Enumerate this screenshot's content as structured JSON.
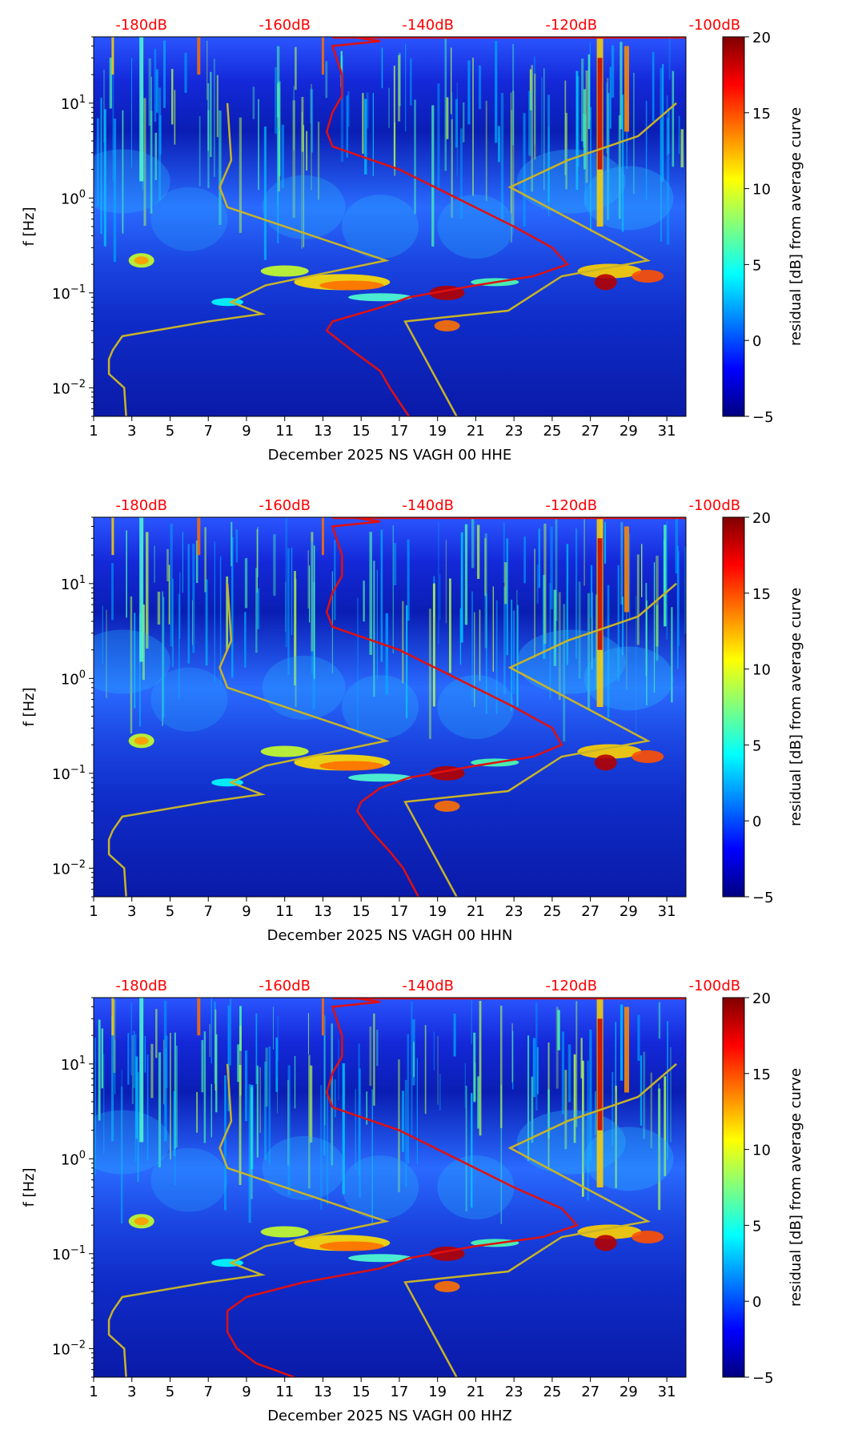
{
  "chart_data": {
    "type": "heatmap",
    "shared": {
      "xlim": [
        1,
        32
      ],
      "x_ticks": [
        "1",
        "3",
        "5",
        "7",
        "9",
        "11",
        "13",
        "15",
        "17",
        "19",
        "21",
        "23",
        "25",
        "27",
        "29",
        "31"
      ],
      "ylabel": "f [Hz]",
      "ylim": [
        0.005,
        50
      ],
      "y_ticks": [
        {
          "value": 10,
          "label": "10",
          "exp": "1"
        },
        {
          "value": 1,
          "label": "10",
          "exp": "0"
        },
        {
          "value": 0.1,
          "label": "10",
          "exp": "−1"
        },
        {
          "value": 0.01,
          "label": "10",
          "exp": "−2"
        }
      ],
      "db_ticks": [
        "-180dB",
        "-160dB",
        "-140dB",
        "-120dB",
        "-100dB"
      ],
      "colorbar": {
        "label": "residual [dB] from average curve",
        "range": [
          -5,
          20
        ],
        "ticks": [
          "20",
          "15",
          "10",
          "5",
          "0",
          "−5"
        ],
        "colors": [
          "#00007f",
          "#0000ff",
          "#007fff",
          "#00ffff",
          "#7fff7f",
          "#ffff00",
          "#ff7f00",
          "#ff0000",
          "#7f0000"
        ]
      },
      "noise_model_color": "#c8b428",
      "ppsd_color": "#e01010"
    },
    "panels": [
      {
        "xlabel": "December 2025 NS VAGH 00 HHE",
        "ppsd_curve": [
          [
            50,
            14.5
          ],
          [
            45,
            16
          ],
          [
            40,
            13.5
          ],
          [
            20,
            14
          ],
          [
            12,
            14
          ],
          [
            8,
            13.5
          ],
          [
            5,
            13.2
          ],
          [
            3.5,
            13.5
          ],
          [
            2,
            17
          ],
          [
            1,
            20
          ],
          [
            0.5,
            23
          ],
          [
            0.3,
            25
          ],
          [
            0.2,
            25.8
          ],
          [
            0.15,
            24
          ],
          [
            0.12,
            21
          ],
          [
            0.09,
            17.5
          ],
          [
            0.07,
            16
          ],
          [
            0.05,
            13.5
          ],
          [
            0.04,
            13.2
          ],
          [
            0.025,
            14.5
          ],
          [
            0.015,
            16
          ],
          [
            0.01,
            16.5
          ],
          [
            0.005,
            17.5
          ]
        ]
      },
      {
        "xlabel": "December 2025 NS VAGH 00 HHN",
        "ppsd_curve": [
          [
            50,
            14.5
          ],
          [
            45,
            16
          ],
          [
            40,
            13.5
          ],
          [
            20,
            14
          ],
          [
            12,
            14
          ],
          [
            8,
            13.5
          ],
          [
            5,
            13.2
          ],
          [
            3.5,
            13.5
          ],
          [
            2,
            17
          ],
          [
            1,
            20
          ],
          [
            0.5,
            23
          ],
          [
            0.3,
            25
          ],
          [
            0.2,
            25.5
          ],
          [
            0.15,
            24
          ],
          [
            0.12,
            21
          ],
          [
            0.09,
            17.5
          ],
          [
            0.07,
            16
          ],
          [
            0.05,
            15
          ],
          [
            0.04,
            14.8
          ],
          [
            0.025,
            15.5
          ],
          [
            0.015,
            16.5
          ],
          [
            0.01,
            17.2
          ],
          [
            0.005,
            18
          ]
        ]
      },
      {
        "xlabel": "December 2025 NS VAGH 00 HHZ",
        "ppsd_curve": [
          [
            50,
            14.5
          ],
          [
            45,
            16
          ],
          [
            40,
            13.5
          ],
          [
            20,
            14
          ],
          [
            12,
            14
          ],
          [
            8,
            13.5
          ],
          [
            5,
            13.2
          ],
          [
            3.5,
            13.5
          ],
          [
            2,
            17
          ],
          [
            1,
            20
          ],
          [
            0.5,
            23
          ],
          [
            0.3,
            25.5
          ],
          [
            0.2,
            26.3
          ],
          [
            0.15,
            24.5
          ],
          [
            0.12,
            21
          ],
          [
            0.09,
            17.5
          ],
          [
            0.07,
            16
          ],
          [
            0.05,
            12
          ],
          [
            0.035,
            9
          ],
          [
            0.025,
            8
          ],
          [
            0.015,
            8
          ],
          [
            0.01,
            8.5
          ],
          [
            0.007,
            9.5
          ],
          [
            0.005,
            11.5
          ]
        ]
      }
    ],
    "noise_models": {
      "low": [
        [
          10,
          8
        ],
        [
          2.5,
          8.2
        ],
        [
          1.3,
          7.6
        ],
        [
          0.8,
          8
        ],
        [
          0.22,
          16.3
        ],
        [
          0.12,
          10
        ],
        [
          0.08,
          8.2
        ],
        [
          0.06,
          9.8
        ],
        [
          0.05,
          7
        ],
        [
          0.035,
          2.5
        ],
        [
          0.025,
          2
        ],
        [
          0.02,
          1.8
        ],
        [
          0.014,
          1.8
        ],
        [
          0.01,
          2.6
        ],
        [
          0.005,
          2.7
        ]
      ],
      "high": [
        [
          10,
          31.5
        ],
        [
          4.5,
          29.5
        ],
        [
          2.5,
          25.8
        ],
        [
          1.3,
          22.8
        ],
        [
          0.22,
          30
        ],
        [
          0.15,
          25.5
        ],
        [
          0.065,
          22.7
        ],
        [
          0.05,
          17.3
        ],
        [
          0.005,
          20
        ]
      ]
    }
  }
}
